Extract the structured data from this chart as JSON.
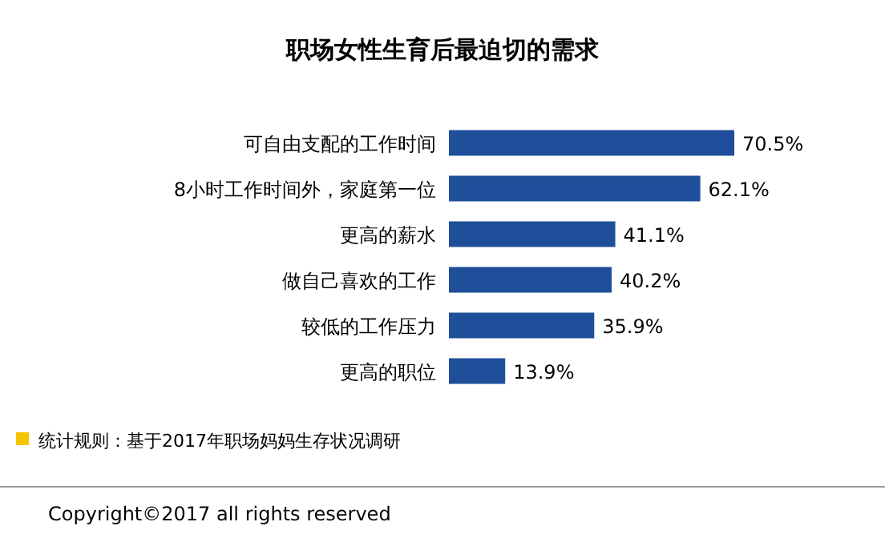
{
  "chart_data": {
    "type": "bar",
    "orientation": "horizontal",
    "title": "职场女性生育后最迫切的需求",
    "categories": [
      "可自由支配的工作时间",
      "8小时工作时间外，家庭第一位",
      "更高的薪水",
      "做自己喜欢的工作",
      "较低的工作压力",
      "更高的职位"
    ],
    "values": [
      70.5,
      62.1,
      41.1,
      40.2,
      35.9,
      13.9
    ],
    "value_labels": [
      "70.5%",
      "62.1%",
      "41.1%",
      "40.2%",
      "35.9%",
      "13.9%"
    ],
    "color": "#1f4e9a",
    "annotations": [
      "统计规则：基于2017年职场妈妈生存状况调研",
      "Copyright©2017 all rights reserved"
    ]
  }
}
